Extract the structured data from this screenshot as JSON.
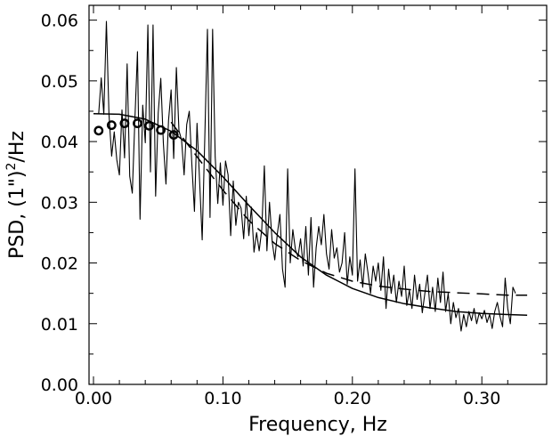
{
  "chart_data": {
    "type": "line",
    "xlabel": "Frequency,  Hz",
    "ylabel_main": "PSD,  (1\")",
    "ylabel_sup": "2",
    "ylabel_tail": "/Hz",
    "xlim": [
      0,
      0.34
    ],
    "ylim": [
      0,
      0.062
    ],
    "x_ticks": [
      0.0,
      0.1,
      0.2,
      0.3
    ],
    "x_tick_labels": [
      "0.00",
      "0.10",
      "0.20",
      "0.30"
    ],
    "y_ticks": [
      0.0,
      0.01,
      0.02,
      0.03,
      0.04,
      0.05,
      0.06
    ],
    "y_tick_labels": [
      "0.00",
      "0.01",
      "0.02",
      "0.03",
      "0.04",
      "0.05",
      "0.06"
    ],
    "grid": false,
    "series": [
      {
        "style": "noisy-line",
        "color": "#000000",
        "points": [
          [
            0.004,
            0.0445
          ],
          [
            0.006,
            0.0505
          ],
          [
            0.008,
            0.0445
          ],
          [
            0.01,
            0.0598
          ],
          [
            0.012,
            0.0445
          ],
          [
            0.014,
            0.0376
          ],
          [
            0.016,
            0.0416
          ],
          [
            0.018,
            0.037
          ],
          [
            0.02,
            0.0345
          ],
          [
            0.022,
            0.0452
          ],
          [
            0.024,
            0.0373
          ],
          [
            0.026,
            0.0528
          ],
          [
            0.028,
            0.0343
          ],
          [
            0.03,
            0.0315
          ],
          [
            0.032,
            0.0436
          ],
          [
            0.034,
            0.0548
          ],
          [
            0.036,
            0.0272
          ],
          [
            0.038,
            0.046
          ],
          [
            0.04,
            0.0398
          ],
          [
            0.042,
            0.0592
          ],
          [
            0.044,
            0.035
          ],
          [
            0.046,
            0.0592
          ],
          [
            0.048,
            0.031
          ],
          [
            0.05,
            0.0447
          ],
          [
            0.052,
            0.0504
          ],
          [
            0.054,
            0.0397
          ],
          [
            0.056,
            0.033
          ],
          [
            0.058,
            0.0435
          ],
          [
            0.06,
            0.0485
          ],
          [
            0.062,
            0.0372
          ],
          [
            0.064,
            0.0522
          ],
          [
            0.066,
            0.0418
          ],
          [
            0.068,
            0.0403
          ],
          [
            0.07,
            0.0345
          ],
          [
            0.072,
            0.0428
          ],
          [
            0.074,
            0.045
          ],
          [
            0.076,
            0.0362
          ],
          [
            0.078,
            0.0285
          ],
          [
            0.08,
            0.043
          ],
          [
            0.082,
            0.0335
          ],
          [
            0.084,
            0.0238
          ],
          [
            0.086,
            0.0405
          ],
          [
            0.088,
            0.0585
          ],
          [
            0.09,
            0.0275
          ],
          [
            0.092,
            0.0585
          ],
          [
            0.094,
            0.0375
          ],
          [
            0.096,
            0.0298
          ],
          [
            0.098,
            0.0365
          ],
          [
            0.1,
            0.0295
          ],
          [
            0.102,
            0.0368
          ],
          [
            0.104,
            0.0345
          ],
          [
            0.106,
            0.0245
          ],
          [
            0.108,
            0.0335
          ],
          [
            0.11,
            0.0262
          ],
          [
            0.112,
            0.03
          ],
          [
            0.114,
            0.029
          ],
          [
            0.116,
            0.024
          ],
          [
            0.118,
            0.031
          ],
          [
            0.12,
            0.0245
          ],
          [
            0.122,
            0.0292
          ],
          [
            0.124,
            0.0218
          ],
          [
            0.126,
            0.025
          ],
          [
            0.128,
            0.022
          ],
          [
            0.13,
            0.0255
          ],
          [
            0.132,
            0.036
          ],
          [
            0.134,
            0.022
          ],
          [
            0.136,
            0.03
          ],
          [
            0.138,
            0.0235
          ],
          [
            0.14,
            0.0205
          ],
          [
            0.142,
            0.0248
          ],
          [
            0.144,
            0.028
          ],
          [
            0.146,
            0.019
          ],
          [
            0.148,
            0.016
          ],
          [
            0.15,
            0.0355
          ],
          [
            0.152,
            0.02
          ],
          [
            0.154,
            0.0255
          ],
          [
            0.156,
            0.0222
          ],
          [
            0.158,
            0.021
          ],
          [
            0.16,
            0.024
          ],
          [
            0.162,
            0.0195
          ],
          [
            0.164,
            0.026
          ],
          [
            0.166,
            0.018
          ],
          [
            0.168,
            0.0275
          ],
          [
            0.17,
            0.016
          ],
          [
            0.172,
            0.0225
          ],
          [
            0.174,
            0.026
          ],
          [
            0.176,
            0.023
          ],
          [
            0.178,
            0.028
          ],
          [
            0.18,
            0.0215
          ],
          [
            0.182,
            0.019
          ],
          [
            0.184,
            0.0255
          ],
          [
            0.186,
            0.0208
          ],
          [
            0.188,
            0.0225
          ],
          [
            0.19,
            0.0185
          ],
          [
            0.192,
            0.02
          ],
          [
            0.194,
            0.025
          ],
          [
            0.196,
            0.0165
          ],
          [
            0.198,
            0.021
          ],
          [
            0.2,
            0.018
          ],
          [
            0.202,
            0.0355
          ],
          [
            0.204,
            0.017
          ],
          [
            0.206,
            0.0205
          ],
          [
            0.208,
            0.016
          ],
          [
            0.21,
            0.0215
          ],
          [
            0.212,
            0.0185
          ],
          [
            0.214,
            0.015
          ],
          [
            0.216,
            0.0195
          ],
          [
            0.218,
            0.017
          ],
          [
            0.22,
            0.02
          ],
          [
            0.222,
            0.0155
          ],
          [
            0.224,
            0.021
          ],
          [
            0.226,
            0.0125
          ],
          [
            0.228,
            0.019
          ],
          [
            0.23,
            0.015
          ],
          [
            0.232,
            0.018
          ],
          [
            0.234,
            0.0135
          ],
          [
            0.236,
            0.017
          ],
          [
            0.238,
            0.0145
          ],
          [
            0.24,
            0.0195
          ],
          [
            0.242,
            0.013
          ],
          [
            0.244,
            0.0155
          ],
          [
            0.246,
            0.0125
          ],
          [
            0.248,
            0.018
          ],
          [
            0.25,
            0.014
          ],
          [
            0.252,
            0.0165
          ],
          [
            0.254,
            0.0118
          ],
          [
            0.256,
            0.015
          ],
          [
            0.258,
            0.018
          ],
          [
            0.26,
            0.0125
          ],
          [
            0.262,
            0.016
          ],
          [
            0.264,
            0.012
          ],
          [
            0.266,
            0.0175
          ],
          [
            0.268,
            0.0135
          ],
          [
            0.27,
            0.0185
          ],
          [
            0.272,
            0.012
          ],
          [
            0.274,
            0.015
          ],
          [
            0.276,
            0.01
          ],
          [
            0.278,
            0.0135
          ],
          [
            0.28,
            0.011
          ],
          [
            0.282,
            0.0125
          ],
          [
            0.284,
            0.0088
          ],
          [
            0.286,
            0.0115
          ],
          [
            0.288,
            0.0095
          ],
          [
            0.29,
            0.012
          ],
          [
            0.292,
            0.0105
          ],
          [
            0.294,
            0.0125
          ],
          [
            0.296,
            0.01
          ],
          [
            0.298,
            0.0118
          ],
          [
            0.3,
            0.0108
          ],
          [
            0.302,
            0.0122
          ],
          [
            0.304,
            0.0102
          ],
          [
            0.306,
            0.0115
          ],
          [
            0.308,
            0.0092
          ],
          [
            0.31,
            0.012
          ],
          [
            0.312,
            0.0135
          ],
          [
            0.314,
            0.0112
          ],
          [
            0.316,
            0.0095
          ],
          [
            0.318,
            0.0175
          ],
          [
            0.32,
            0.0125
          ],
          [
            0.322,
            0.01
          ],
          [
            0.324,
            0.016
          ],
          [
            0.326,
            0.015
          ]
        ]
      },
      {
        "style": "solid-fit",
        "color": "#000000",
        "points": [
          [
            0.0,
            0.0446
          ],
          [
            0.02,
            0.0445
          ],
          [
            0.04,
            0.0437
          ],
          [
            0.06,
            0.0417
          ],
          [
            0.08,
            0.0385
          ],
          [
            0.1,
            0.0342
          ],
          [
            0.12,
            0.0295
          ],
          [
            0.14,
            0.025
          ],
          [
            0.16,
            0.021
          ],
          [
            0.18,
            0.018
          ],
          [
            0.2,
            0.0158
          ],
          [
            0.22,
            0.0143
          ],
          [
            0.24,
            0.0133
          ],
          [
            0.26,
            0.0126
          ],
          [
            0.28,
            0.012
          ],
          [
            0.3,
            0.0117
          ],
          [
            0.32,
            0.0115
          ],
          [
            0.335,
            0.0114
          ]
        ]
      },
      {
        "style": "dashed-fit",
        "color": "#000000",
        "points": [
          [
            0.06,
            0.0432
          ],
          [
            0.08,
            0.0375
          ],
          [
            0.1,
            0.032
          ],
          [
            0.12,
            0.027
          ],
          [
            0.14,
            0.0232
          ],
          [
            0.16,
            0.0204
          ],
          [
            0.18,
            0.0183
          ],
          [
            0.2,
            0.017
          ],
          [
            0.22,
            0.0162
          ],
          [
            0.24,
            0.0157
          ],
          [
            0.26,
            0.0153
          ],
          [
            0.28,
            0.0151
          ],
          [
            0.3,
            0.0149
          ],
          [
            0.32,
            0.0147
          ],
          [
            0.335,
            0.0147
          ]
        ]
      },
      {
        "style": "circle-markers",
        "color": "#000000",
        "points": [
          [
            0.004,
            0.0418
          ],
          [
            0.014,
            0.0427
          ],
          [
            0.024,
            0.043
          ],
          [
            0.034,
            0.043
          ],
          [
            0.043,
            0.0426
          ],
          [
            0.052,
            0.0419
          ],
          [
            0.062,
            0.0411
          ]
        ]
      }
    ]
  }
}
